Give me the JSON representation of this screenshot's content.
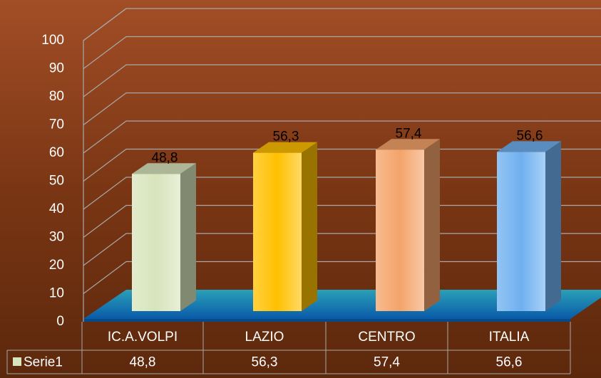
{
  "chart_data": {
    "type": "bar3d",
    "categories": [
      "IC.A.VOLPI",
      "LAZIO",
      "CENTRO",
      "ITALIA"
    ],
    "series": [
      {
        "name": "Serie1",
        "color": "#d8e4bc",
        "colors": [
          "#d8e4bc",
          "#ffc000",
          "#f4a46a",
          "#6fb0f0"
        ],
        "values": [
          48.8,
          56.3,
          57.4,
          56.6
        ],
        "value_labels": [
          "48,8",
          "56,3",
          "57,4",
          "56,6"
        ]
      }
    ],
    "ylim": [
      0,
      100
    ],
    "yticks": [
      0,
      10,
      20,
      30,
      40,
      50,
      60,
      70,
      80,
      90,
      100
    ],
    "grid": true
  }
}
